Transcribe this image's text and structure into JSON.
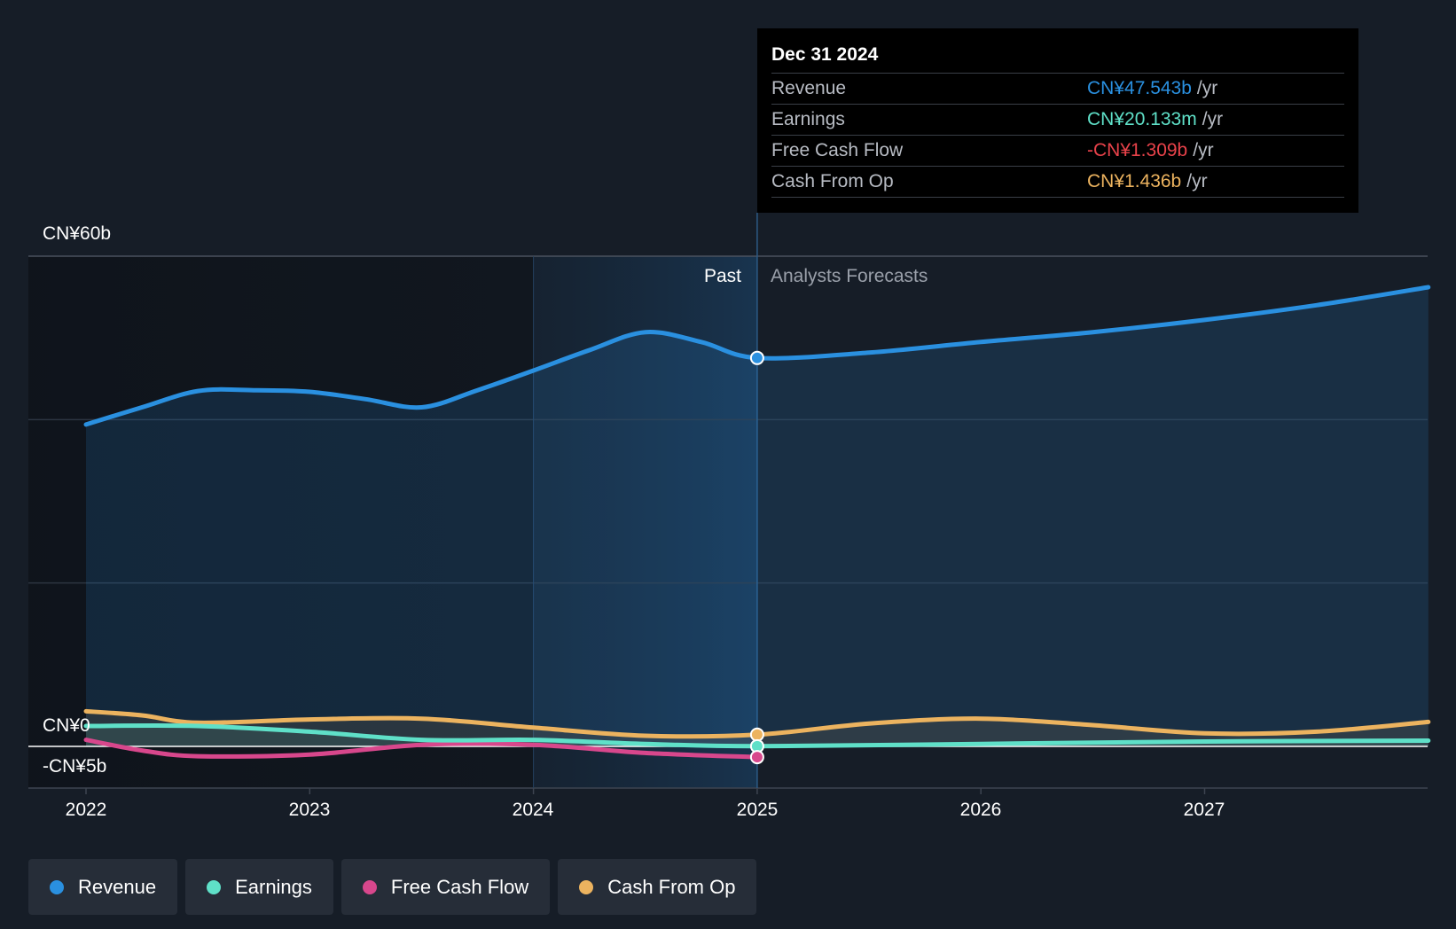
{
  "chart_data": {
    "type": "area",
    "y_ticks": [
      "CN¥60b",
      "CN¥0",
      "-CN¥5b"
    ],
    "ylim": [
      -5,
      60
    ],
    "x_ticks": [
      "2022",
      "2023",
      "2024",
      "2025",
      "2026",
      "2027"
    ],
    "segments": {
      "past": "Past",
      "forecast": "Analysts Forecasts"
    },
    "divider_date": 2025.0,
    "series": [
      {
        "name": "Revenue",
        "color": "#2a90e0",
        "points": [
          [
            2022.0,
            39.4
          ],
          [
            2022.25,
            41.5
          ],
          [
            2022.5,
            43.5
          ],
          [
            2022.75,
            43.6
          ],
          [
            2023.0,
            43.4
          ],
          [
            2023.25,
            42.5
          ],
          [
            2023.5,
            41.5
          ],
          [
            2023.75,
            43.6
          ],
          [
            2024.0,
            46.0
          ],
          [
            2024.25,
            48.5
          ],
          [
            2024.5,
            50.7
          ],
          [
            2024.75,
            49.5
          ],
          [
            2025.0,
            47.543
          ],
          [
            2025.5,
            48.2
          ],
          [
            2026.0,
            49.5
          ],
          [
            2026.5,
            50.7
          ],
          [
            2027.0,
            52.2
          ],
          [
            2027.5,
            54.0
          ],
          [
            2028.0,
            56.2
          ]
        ]
      },
      {
        "name": "Earnings",
        "color": "#5fe0c8",
        "points": [
          [
            2022.0,
            2.5
          ],
          [
            2022.5,
            2.5
          ],
          [
            2023.0,
            1.8
          ],
          [
            2023.5,
            0.8
          ],
          [
            2024.0,
            0.8
          ],
          [
            2024.5,
            0.3
          ],
          [
            2025.0,
            0.02
          ],
          [
            2026.0,
            0.3
          ],
          [
            2027.0,
            0.6
          ],
          [
            2028.0,
            0.7
          ]
        ]
      },
      {
        "name": "Free Cash Flow",
        "color": "#d8478c",
        "points": [
          [
            2022.0,
            0.8
          ],
          [
            2022.25,
            -0.5
          ],
          [
            2022.5,
            -1.2
          ],
          [
            2023.0,
            -1.0
          ],
          [
            2023.5,
            0.2
          ],
          [
            2024.0,
            0.2
          ],
          [
            2024.5,
            -0.8
          ],
          [
            2025.0,
            -1.309
          ]
        ]
      },
      {
        "name": "Cash From Op",
        "color": "#ecb35f",
        "points": [
          [
            2022.0,
            4.3
          ],
          [
            2022.25,
            3.8
          ],
          [
            2022.5,
            2.9
          ],
          [
            2023.0,
            3.3
          ],
          [
            2023.5,
            3.4
          ],
          [
            2024.0,
            2.3
          ],
          [
            2024.5,
            1.3
          ],
          [
            2025.0,
            1.436
          ],
          [
            2025.5,
            2.8
          ],
          [
            2026.0,
            3.4
          ],
          [
            2026.5,
            2.6
          ],
          [
            2027.0,
            1.6
          ],
          [
            2027.5,
            1.8
          ],
          [
            2028.0,
            3.0
          ]
        ]
      }
    ]
  },
  "tooltip": {
    "date": "Dec 31 2024",
    "unit": "/yr",
    "rows": [
      {
        "label": "Revenue",
        "value": "CN¥47.543b",
        "color": "#2a90e0"
      },
      {
        "label": "Earnings",
        "value": "CN¥20.133m",
        "color": "#5fe0c8"
      },
      {
        "label": "Free Cash Flow",
        "value": "-CN¥1.309b",
        "color": "#e8424a"
      },
      {
        "label": "Cash From Op",
        "value": "CN¥1.436b",
        "color": "#ecb35f"
      }
    ]
  },
  "legend": [
    {
      "label": "Revenue",
      "color": "#2a90e0"
    },
    {
      "label": "Earnings",
      "color": "#5fe0c8"
    },
    {
      "label": "Free Cash Flow",
      "color": "#d8478c"
    },
    {
      "label": "Cash From Op",
      "color": "#ecb35f"
    }
  ]
}
